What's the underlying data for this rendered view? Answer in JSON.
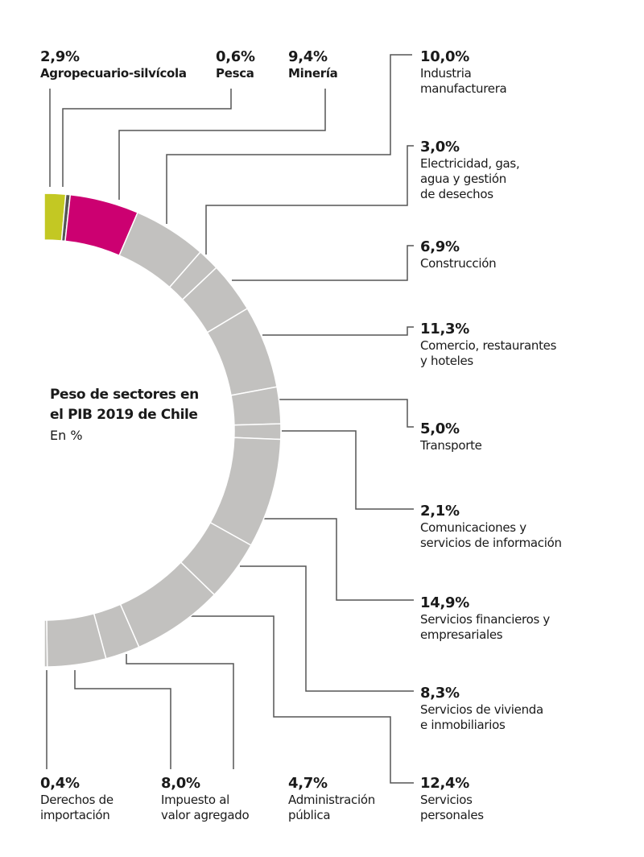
{
  "chart_data": {
    "type": "pie",
    "variant": "semicircle-donut",
    "title": "Peso de sectores en el PIB 2019 de Chile",
    "subtitle": "En %",
    "unit": "%",
    "colors": {
      "Agropecuario-silvícola": "#c3c823",
      "Pesca": "#555555",
      "Minería": "#cc0071",
      "default": "#c2c1bf",
      "separator": "#ffffff",
      "leader": "#555555"
    },
    "slices": [
      {
        "name": "Agropecuario-silvícola",
        "value": 2.9,
        "label": "2,9%"
      },
      {
        "name": "Pesca",
        "value": 0.6,
        "label": "0,6%"
      },
      {
        "name": "Minería",
        "value": 9.4,
        "label": "9,4%"
      },
      {
        "name": "Industria manufacturera",
        "value": 10.0,
        "label": "10,0%"
      },
      {
        "name": "Electricidad, gas, agua y gestión de desechos",
        "value": 3.0,
        "label": "3,0%"
      },
      {
        "name": "Construcción",
        "value": 6.9,
        "label": "6,9%"
      },
      {
        "name": "Comercio, restaurantes y hoteles",
        "value": 11.3,
        "label": "11,3%"
      },
      {
        "name": "Transporte",
        "value": 5.0,
        "label": "5,0%"
      },
      {
        "name": "Comunicaciones y servicios de información",
        "value": 2.1,
        "label": "2,1%"
      },
      {
        "name": "Servicios financieros y empresariales",
        "value": 14.9,
        "label": "14,9%"
      },
      {
        "name": "Servicios de vivienda e inmobiliarios",
        "value": 8.3,
        "label": "8,3%"
      },
      {
        "name": "Servicios personales",
        "value": 12.4,
        "label": "12,4%"
      },
      {
        "name": "Administración pública",
        "value": 4.7,
        "label": "4,7%"
      },
      {
        "name": "Impuesto al valor agregado",
        "value": 8.0,
        "label": "8,0%"
      },
      {
        "name": "Derechos de importación",
        "value": 0.4,
        "label": "0,4%"
      }
    ]
  },
  "labels": [
    {
      "value": "2,9%",
      "name": "Agropecuario-silvícola"
    },
    {
      "value": "0,6%",
      "name": "Pesca"
    },
    {
      "value": "9,4%",
      "name": "Minería"
    },
    {
      "value": "10,0%",
      "name": "Industria\nmanufacturera"
    },
    {
      "value": "3,0%",
      "name": "Electricidad, gas,\nagua y gestión\nde desechos"
    },
    {
      "value": "6,9%",
      "name": "Construcción"
    },
    {
      "value": "11,3%",
      "name": "Comercio, restaurantes\ny hoteles"
    },
    {
      "value": "5,0%",
      "name": "Transporte"
    },
    {
      "value": "2,1%",
      "name": "Comunicaciones y\nservicios de información"
    },
    {
      "value": "14,9%",
      "name": "Servicios financieros y\nempresariales"
    },
    {
      "value": "8,3%",
      "name": "Servicios de vivienda\ne inmobiliarios"
    },
    {
      "value": "12,4%",
      "name": "Servicios\npersonales"
    },
    {
      "value": "4,7%",
      "name": "Administración\npública"
    },
    {
      "value": "8,0%",
      "name": "Impuesto al\nvalor agregado"
    },
    {
      "value": "0,4%",
      "name": "Derechos de\nimportación"
    }
  ],
  "title_lines": "Peso de sectores en\nel PIB 2019 de Chile",
  "subtitle": "En %"
}
